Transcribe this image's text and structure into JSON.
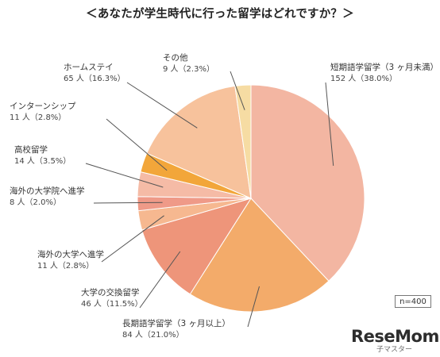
{
  "title": "＜あなたが学生時代に行った留学はどれですか？＞",
  "sample_note": "n=400",
  "watermark": {
    "main": "ReseMom",
    "sub": "子マスター"
  },
  "colors": {
    "guide": "#555555"
  },
  "chart_data": {
    "type": "pie",
    "start": "12 o'clock",
    "direction": "clockwise",
    "slices": [
      {
        "label": "短期語学留学（3 ヶ月未満）",
        "value": 152,
        "display": "152 人（38.0%）",
        "color": "#f3b6a2"
      },
      {
        "label": "長期語学留学（3 ヶ月以上）",
        "value": 84,
        "display": "84 人（21.0%）",
        "color": "#f3ab6a"
      },
      {
        "label": "大学の交換留学",
        "value": 46,
        "display": "46 人（11.5%）",
        "color": "#ee957a"
      },
      {
        "label": "海外の大学へ進学",
        "value": 11,
        "display": "11 人（2.8%）",
        "color": "#f6b890"
      },
      {
        "label": "海外の大学院へ進学",
        "value": 8,
        "display": "8 人（2.0%）",
        "color": "#ef9a88"
      },
      {
        "label": "高校留学",
        "value": 14,
        "display": "14 人（3.5%）",
        "color": "#f5bba6"
      },
      {
        "label": "インターンシップ",
        "value": 11,
        "display": "11 人（2.8%）",
        "color": "#f2a63a"
      },
      {
        "label": "ホームステイ",
        "value": 65,
        "display": "65 人（16.3%）",
        "color": "#f7c29c"
      },
      {
        "label": "その他",
        "value": 9,
        "display": "9 人（2.3%）",
        "color": "#f6dca3"
      }
    ]
  }
}
